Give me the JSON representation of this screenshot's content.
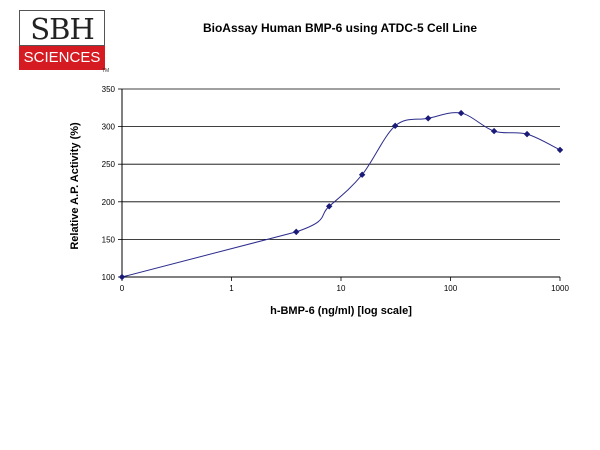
{
  "logo": {
    "line1": "SBH",
    "line2": "SCIENCES",
    "tm": "TM"
  },
  "chart_data": {
    "type": "line",
    "title": "BioAssay Human BMP-6 using ATDC-5 Cell Line",
    "xlabel": "h-BMP-6 (ng/ml) [log scale]",
    "ylabel": "Relative  A.P. Activity  (%)",
    "xscale": "log",
    "xticks": [
      "0",
      "1",
      "10",
      "100",
      "1000"
    ],
    "yticks": [
      100,
      150,
      200,
      250,
      300,
      350
    ],
    "ylim": [
      100,
      350
    ],
    "grid": "horizontal",
    "series": [
      {
        "x": [
          0,
          3.9,
          7.8,
          15.6,
          31.25,
          62.5,
          125,
          250,
          500,
          1000
        ],
        "y": [
          100,
          160,
          194,
          236,
          301,
          311,
          318,
          294,
          290,
          269
        ]
      }
    ],
    "colors": {
      "line": "#2c2c8c",
      "marker": "#1a1a78"
    }
  }
}
